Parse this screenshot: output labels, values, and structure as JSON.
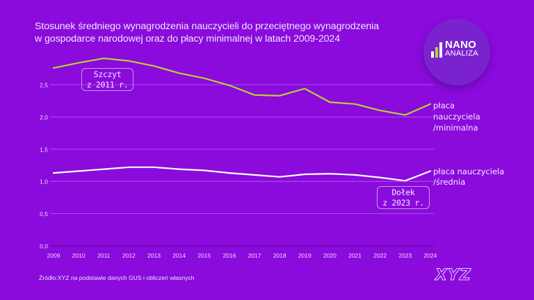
{
  "title": {
    "line1": "Stosunek średniego wynagrodzenia nauczycieli do przeciętnego wynagrodzenia",
    "line2": "w gospodarce narodowej oraz do płacy minimalnej w latach 2009-2024"
  },
  "logo": {
    "word1": "NANO",
    "word2": "ANALIZA",
    "bar_colors": [
      "#ffffff",
      "#b5d334",
      "#ffffff"
    ]
  },
  "annotations": {
    "peak": {
      "line1": "Szczyt",
      "line2": "z 2011 r."
    },
    "trough": {
      "line1": "Dołek",
      "line2": "z 2023 r."
    }
  },
  "source": "Źródło:XYZ na podstawie danych GUS i obliczeń własnych",
  "brand": "XYZ",
  "colors": {
    "background": "#8a0bdc",
    "series_minimal": "#b5d334",
    "series_average": "#ffffff",
    "grid": "#b565ee",
    "baseline": "#6a08a8"
  },
  "chart_data": {
    "type": "line",
    "title": "Stosunek średniego wynagrodzenia nauczycieli do przeciętnego wynagrodzenia w gospodarce narodowej oraz do płacy minimalnej w latach 2009-2024",
    "xlabel": "",
    "ylabel": "",
    "x": [
      2009,
      2010,
      2011,
      2012,
      2013,
      2014,
      2015,
      2016,
      2017,
      2018,
      2019,
      2020,
      2021,
      2022,
      2023,
      2024
    ],
    "x_tick_labels": [
      "2009",
      "2010",
      "2011",
      "2012",
      "2013",
      "2014",
      "2015",
      "2016",
      "2017",
      "2018",
      "2019",
      "2020",
      "2021",
      "2022",
      "2023",
      "2024"
    ],
    "ylim": [
      0,
      3.0
    ],
    "y_ticks": [
      0,
      0.5,
      1.0,
      1.5,
      2.0,
      2.5
    ],
    "y_tick_labels": [
      "0,0",
      "0,5",
      "1,0",
      "1,5",
      "2,0",
      "2,5"
    ],
    "grid": true,
    "legend": "right (inline labels at line ends)",
    "series": [
      {
        "name": "płaca nauczyciela /minimalna",
        "label_lines": [
          "płaca",
          "nauczyciela",
          "/minimalna"
        ],
        "color": "#b5d334",
        "values": [
          2.76,
          2.84,
          2.91,
          2.87,
          2.79,
          2.68,
          2.6,
          2.49,
          2.34,
          2.33,
          2.44,
          2.23,
          2.2,
          2.1,
          2.03,
          2.2
        ]
      },
      {
        "name": "płaca nauczyciela /średnia",
        "label_lines": [
          "płaca nauczyciela",
          "/średnia"
        ],
        "color": "#ffffff",
        "values": [
          1.13,
          1.16,
          1.19,
          1.22,
          1.22,
          1.19,
          1.17,
          1.13,
          1.1,
          1.07,
          1.11,
          1.12,
          1.1,
          1.06,
          1.01,
          1.16
        ]
      }
    ],
    "annotations": [
      {
        "text": "Szczyt z 2011 r.",
        "x": 2011,
        "series": "płaca nauczyciela /minimalna"
      },
      {
        "text": "Dołek z 2023 r.",
        "x": 2023,
        "series": "płaca nauczyciela /średnia"
      }
    ],
    "source": "Źródło:XYZ na podstawie danych GUS i obliczeń własnych"
  }
}
